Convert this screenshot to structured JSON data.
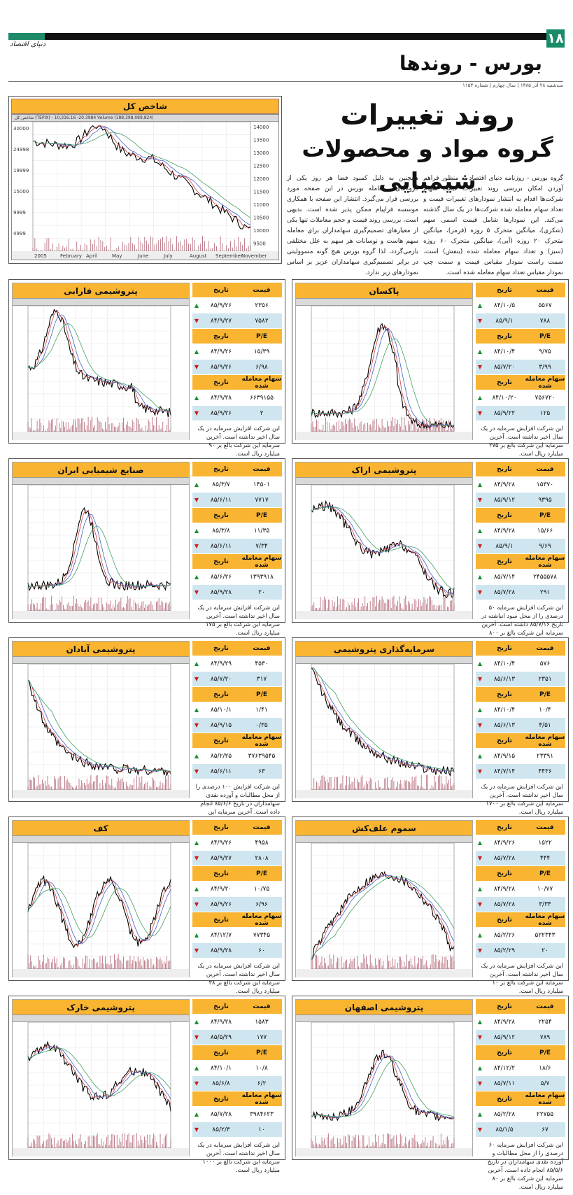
{
  "header": {
    "page_number": "۱۸",
    "publication": "دنیای اقتصاد",
    "section": "بورس - روندها",
    "dateline": "سه‌شنبه ۲۸ آذر ۱۳۸۵ | سال چهارم | شماره ۱۱۵۳"
  },
  "headline": {
    "line1": "روند تغییرات",
    "line2": "گروه مواد و محصولات شیمیایی"
  },
  "intro": {
    "right": "گروه بورس - روزنامه دنیای اقتصاد به منظور فراهم آوردن امکان بررسی روند تغییرات قیمت سهام شرکت‌ها اقدام به انتشار نمودارهای تغییرات قیمت و تعداد سهام معامله شده شرکت‌ها در یک سال گذشته می‌کند. این نمودارها شامل قیمت اسمی سهم (شکری)، میانگین متحرک ۵ روزه (قرمز)، میانگین متحرک ۲۰ روزه (آبی)، میانگین متحرک ۶۰ روزه (سبز) و تعداد سهام معامله شده (بنفش) است. سمت راست نمودار مقیاس قیمت و سمت چپ نمودار مقیاس تعداد سهام معامله شده است.",
    "left": "همچنین به دلیل کمبود فضا هر روز یکی از گروه‌های پرمعامله بورس در این صفحه مورد بررسی قرار می‌گیرد. انتشار این صفحه با همکاری موسسه فراپیام ممکن پذیر شده است. بدیهی است، بررسی روند قیمت و حجم معاملات تنها یکی از معیارهای تصمیم‌گیری سهامداران برای معامله سهم هاست و نوسانات هر سهم به علل مختلفی بازمی‌گردد، لذا گروه بورس هیچ گونه مسوولیتی در برابر تصمیم‌گیری سهامداران عزیز بر اساس نمودارهای زیر ندارد."
  },
  "main_chart": {
    "title": "شاخص کل",
    "infobar": "شاخص کل (TEPIX) - 10,316.16 -20.3984 Volume (188,398,089,824)",
    "y_ticks": [
      "14000",
      "13500",
      "13000",
      "12500",
      "12000",
      "11500",
      "11000",
      "10500",
      "10000",
      "9500"
    ],
    "vol_ticks": [
      "30000",
      "24998",
      "19999",
      "15000",
      "9999",
      "4999"
    ],
    "x_ticks": [
      "2005",
      "February",
      "April",
      "May",
      "June",
      "July",
      "August",
      "September",
      "November"
    ]
  },
  "labels": {
    "price": "قیمت",
    "date": "تاریخ",
    "pe": "P/E",
    "volume": "سهام معامله شده"
  },
  "companies": [
    {
      "name": "پتروشیمی فارابی",
      "rows": [
        [
          "۲۳۵۶",
          "۸۵/۹/۲۶",
          "up"
        ],
        [
          "۷۵۸۲",
          "۸۴/۹/۲۷",
          "dn"
        ],
        [
          "۱۵/۳۹",
          "۸۴/۹/۲۶",
          "up"
        ],
        [
          "۶/۹۸",
          "۸۵/۹/۲۶",
          "dn"
        ],
        [
          "۶۶۳۹۱۵۵",
          "۸۴/۹/۲۸",
          "up"
        ],
        [
          "۲",
          "۸۵/۹/۲۶",
          "dn"
        ]
      ],
      "note": "این شرکت افزایش سرمایه در یک سال اخیر نداشته است. آخرین سرمایه این شرکت بالغ بر ۹۰ میلیارد ریال است."
    },
    {
      "name": "پاکسان",
      "rows": [
        [
          "۵۵۶۷",
          "۸۴/۱۰/۵",
          "up"
        ],
        [
          "۷۸۸",
          "۸۵/۹/۱",
          "dn"
        ],
        [
          "۹/۷۵",
          "۸۴/۱۰/۴",
          "up"
        ],
        [
          "۳/۹۹",
          "۸۵/۷/۲۰",
          "dn"
        ],
        [
          "۷۵۶۷۲۰",
          "۸۴/۱۰/۲۰",
          "up"
        ],
        [
          "۱۲۵",
          "۸۵/۹/۲۲",
          "dn"
        ]
      ],
      "note": "این شرکت افزایش سرمایه در یک سال اخیر نداشته است. آخرین سرمایه این شرکت بالغ بر ۲۷۵ میلیارد ریال است."
    },
    {
      "name": "صنایع شیمیایی ایران",
      "rows": [
        [
          "۱۴۵۰۱",
          "۸۵/۳/۷",
          "up"
        ],
        [
          "۷۷۱۷",
          "۸۵/۶/۱۱",
          "dn"
        ],
        [
          "۱۱/۳۵",
          "۸۵/۳/۸",
          "up"
        ],
        [
          "۷/۳۴",
          "۸۵/۶/۱۱",
          "dn"
        ],
        [
          "۱۳۹۳۹۱۸",
          "۸۵/۶/۲۶",
          "up"
        ],
        [
          "۲۰",
          "۸۵/۹/۲۸",
          "dn"
        ]
      ],
      "note": "این شرکت افزایش سرمایه در یک سال اخیر نداشته است. آخرین سرمایه این شرکت بالغ بر ۱۷۵ میلیارد ریال است."
    },
    {
      "name": "پتروشیمی اراک",
      "rows": [
        [
          "۱۵۳۷۰",
          "۸۴/۹/۲۸",
          "up"
        ],
        [
          "۹۳۹۵",
          "۸۵/۹/۱۲",
          "dn"
        ],
        [
          "۱۵/۶۶",
          "۸۴/۹/۲۸",
          "up"
        ],
        [
          "۹/۶۹",
          "۸۵/۹/۱",
          "dn"
        ],
        [
          "۲۴۵۵۵۷۸",
          "۸۵/۷/۱۴",
          "up"
        ],
        [
          "۲۹۱",
          "۸۵/۷/۲۸",
          "dn"
        ]
      ],
      "note": "این شرکت افزایش سرمایه ۵۰ درصدی را از محل سود انباشته در تاریخ ۸۵/۷/۱۶ داشته است. آخرین سرمایه این شرکت بالغ بر ۸۰۰ میلیارد ریال است."
    },
    {
      "name": "پتروشیمی آبادان",
      "rows": [
        [
          "۴۵۳۰",
          "۸۴/۹/۲۹",
          "up"
        ],
        [
          "۳۱۷",
          "۸۵/۷/۲۰",
          "dn"
        ],
        [
          "۱/۴۱",
          "۸۵/۱۰/۱",
          "up"
        ],
        [
          "۰/۳۵",
          "۸۵/۹/۱۵",
          "dn"
        ],
        [
          "۳۷۶۳۹۵۴۵",
          "۸۵/۲/۲۵",
          "up"
        ],
        [
          "۶۳",
          "۸۵/۶/۱۱",
          "dn"
        ]
      ],
      "note": "این شرکت افزایش ۱۰۰ درصدی را از محل مطالبات و آورده نقدی سهامداران در تاریخ ۸۵/۶/۶ انجام داده است. آخرین سرمایه این شرکت بالغ بر ۶۰ میلیارد ریال است."
    },
    {
      "name": "سرمایه‌گذاری پتروشیمی",
      "rows": [
        [
          "۵۷۶",
          "۸۴/۱۰/۴",
          "up"
        ],
        [
          "۲۳۵۱",
          "۸۵/۶/۱۳",
          "dn"
        ],
        [
          "۱۰/۴",
          "۸۴/۱۰/۴",
          "up"
        ],
        [
          "۴/۵۱",
          "۸۵/۶/۱۳",
          "dn"
        ],
        [
          "۲۳۳۹۱",
          "۸۴/۹/۱۵",
          "up"
        ],
        [
          "۴۴۳۶",
          "۸۴/۷/۱۴",
          "dn"
        ]
      ],
      "note": "این شرکت افزایش سرمایه در یک سال اخیر نداشته است. آخرین سرمایه این شرکت بالغ بر ۱۷۰۰ میلیارد ریال است."
    },
    {
      "name": "کف",
      "rows": [
        [
          "۴۹۵۸",
          "۸۴/۹/۲۶",
          "up"
        ],
        [
          "۲۸۰۸",
          "۸۵/۹/۲۷",
          "dn"
        ],
        [
          "۱۰/۷۵",
          "۸۴/۹/۲۰",
          "up"
        ],
        [
          "۶/۹۶",
          "۸۵/۹/۲۶",
          "dn"
        ],
        [
          "۷۷۳۴۵",
          "۸۴/۱۲/۷",
          "up"
        ],
        [
          "۶۰",
          "۸۵/۹/۲۸",
          "dn"
        ]
      ],
      "note": "این شرکت افزایش سرمایه در یک سال اخیر نداشته است. آخرین سرمایه این شرکت بالغ بر ۳۸ میلیارد ریال است."
    },
    {
      "name": "سموم علف‌کش",
      "rows": [
        [
          "۱۵۲۲",
          "۸۴/۹/۲۶",
          "up"
        ],
        [
          "۴۴۴",
          "۸۵/۷/۲۸",
          "dn"
        ],
        [
          "۱۰/۷۷",
          "۸۴/۹/۲۸",
          "up"
        ],
        [
          "۳/۳۴",
          "۸۵/۷/۲۸",
          "dn"
        ],
        [
          "۵۲۲۳۴۳",
          "۸۵/۲/۲۶",
          "up"
        ],
        [
          "۲۰",
          "۸۵/۲/۲۹",
          "dn"
        ]
      ],
      "note": "این شرکت افزایش سرمایه در یک سال اخیر نداشته است. آخرین سرمایه این شرکت بالغ بر ۱۰ میلیارد ریال است."
    },
    {
      "name": "پتروشیمی خارک",
      "rows": [
        [
          "۱۵۸۳",
          "۸۴/۹/۲۸",
          "up"
        ],
        [
          "۱۷۷",
          "۸۵/۵/۲۹",
          "dn"
        ],
        [
          "۱۰/۸",
          "۸۴/۱۰/۱",
          "up"
        ],
        [
          "۶/۲",
          "۸۵/۶/۸",
          "dn"
        ],
        [
          "۳۹۸۴۶۲۳",
          "۸۵/۷/۲۸",
          "up"
        ],
        [
          "۱۰",
          "۸۵/۲/۳",
          "dn"
        ]
      ],
      "note": "این شرکت افزایش سرمایه در یک سال اخیر نداشته است. آخرین سرمایه این شرکت بالغ بر ۱۰۰۰ میلیارد ریال است."
    },
    {
      "name": "پتروشیمی اصفهان",
      "rows": [
        [
          "۲۲۵۴",
          "۸۴/۹/۲۸",
          "up"
        ],
        [
          "۷۸۹",
          "۸۵/۹/۱۲",
          "dn"
        ],
        [
          "۱۸/۶",
          "۸۴/۱۲/۲",
          "up"
        ],
        [
          "۵/۷",
          "۸۵/۷/۱۱",
          "dn"
        ],
        [
          "۲۲۷۵۵",
          "۸۵/۲/۲۸",
          "up"
        ],
        [
          "۶۷",
          "۸۵/۱/۵",
          "dn"
        ]
      ],
      "note": "این شرکت افزایش سرمایه ۶۰ درصدی را از محل مطالبات و آورده نقدی سهامداران در تاریخ ۸۵/۵/۶ انجام داده است. آخرین سرمایه این شرکت بالغ بر ۸۰ میلیارد ریال است."
    }
  ],
  "colors": {
    "accent": "#f9b531",
    "row_alt": "#cfe6f0",
    "up": "#1a8f30",
    "down": "#c81e1e",
    "brand_green": "#1e8a6a"
  }
}
